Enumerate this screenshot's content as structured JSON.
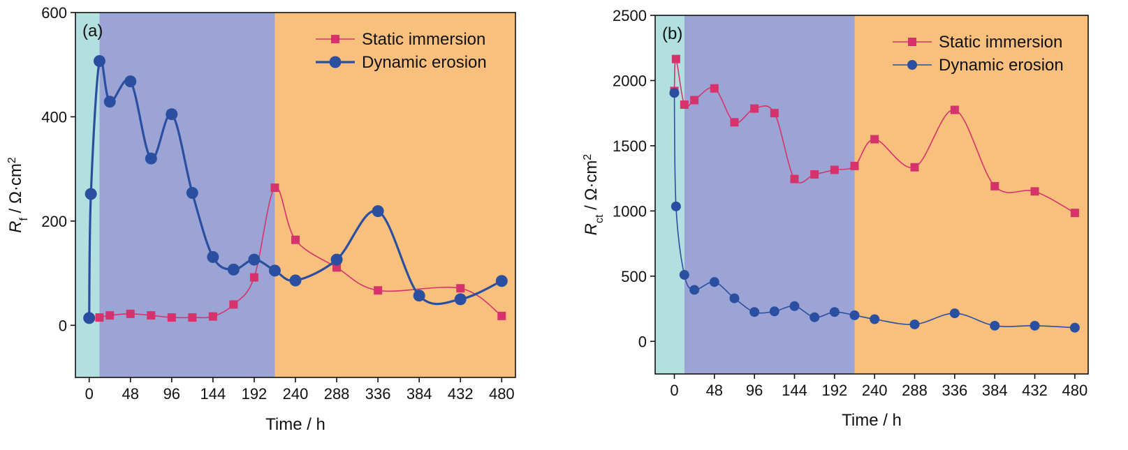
{
  "chart_data": [
    {
      "type": "line",
      "panel_label": "(a)",
      "xlabel": "Time / h",
      "ylabel": {
        "symbol": "R",
        "subscript": "f",
        "unit": " / Ω·cm",
        "sup": "2"
      },
      "xlim": [
        -16,
        496
      ],
      "ylim": [
        -100,
        600
      ],
      "xticks": [
        0,
        48,
        96,
        144,
        192,
        240,
        288,
        336,
        384,
        432,
        480
      ],
      "yticks": [
        0,
        200,
        400,
        600
      ],
      "grid": false,
      "legend_position": "top-right",
      "stages": [
        {
          "from": -16,
          "to": 12,
          "color": "#b2e0de"
        },
        {
          "from": 12,
          "to": 216,
          "color": "#9ca4d6"
        },
        {
          "from": 216,
          "to": 496,
          "color": "#f9bf7c"
        }
      ],
      "series": [
        {
          "name": "Static immersion",
          "color": "#d6336c",
          "marker": "square",
          "line_width": 1.6,
          "x": [
            12,
            24,
            48,
            72,
            96,
            120,
            144,
            168,
            192,
            216,
            240,
            288,
            336,
            432,
            480
          ],
          "y": [
            15,
            19,
            22,
            19,
            15,
            15,
            17,
            40,
            92,
            264,
            164,
            111,
            67,
            71,
            18
          ]
        },
        {
          "name": "Dynamic erosion",
          "color": "#2a4ea0",
          "marker": "circle",
          "line_width": 3.2,
          "x": [
            0,
            2,
            12,
            24,
            48,
            72,
            96,
            120,
            144,
            168,
            192,
            216,
            240,
            288,
            336,
            384,
            432,
            480
          ],
          "y": [
            14,
            252,
            507,
            429,
            468,
            320,
            405,
            254,
            131,
            107,
            126,
            105,
            86,
            126,
            219,
            57,
            50,
            85
          ]
        }
      ]
    },
    {
      "type": "line",
      "panel_label": "(b)",
      "xlabel": "Time / h",
      "ylabel": {
        "symbol": "R",
        "subscript": "ct",
        "unit": " / Ω·cm",
        "sup": "2"
      },
      "xlim": [
        -23,
        496
      ],
      "ylim": [
        -250,
        2500
      ],
      "xticks": [
        0,
        48,
        96,
        144,
        192,
        240,
        288,
        336,
        384,
        432,
        480
      ],
      "yticks": [
        0,
        500,
        1000,
        1500,
        2000,
        2500
      ],
      "grid": false,
      "legend_position": "top-right",
      "stages": [
        {
          "from": -23,
          "to": 12,
          "color": "#b2e0de"
        },
        {
          "from": 12,
          "to": 216,
          "color": "#9ca4d6"
        },
        {
          "from": 216,
          "to": 496,
          "color": "#f9bf7c"
        }
      ],
      "series": [
        {
          "name": "Static immersion",
          "color": "#d6336c",
          "marker": "square",
          "line_width": 1.6,
          "x": [
            0,
            2,
            12,
            24,
            48,
            72,
            96,
            120,
            144,
            168,
            192,
            216,
            240,
            288,
            336,
            384,
            432,
            480
          ],
          "y": [
            1920,
            2165,
            1815,
            1850,
            1940,
            1680,
            1785,
            1750,
            1245,
            1280,
            1315,
            1345,
            1550,
            1335,
            1775,
            1190,
            1150,
            985
          ]
        },
        {
          "name": "Dynamic erosion",
          "color": "#2a4ea0",
          "marker": "circle",
          "line_width": 1.6,
          "x": [
            0,
            2,
            12,
            24,
            48,
            72,
            96,
            120,
            144,
            168,
            192,
            216,
            240,
            288,
            336,
            384,
            432,
            480
          ],
          "y": [
            1905,
            1035,
            510,
            395,
            455,
            330,
            225,
            230,
            270,
            185,
            225,
            200,
            170,
            130,
            215,
            120,
            120,
            105
          ]
        }
      ]
    }
  ]
}
